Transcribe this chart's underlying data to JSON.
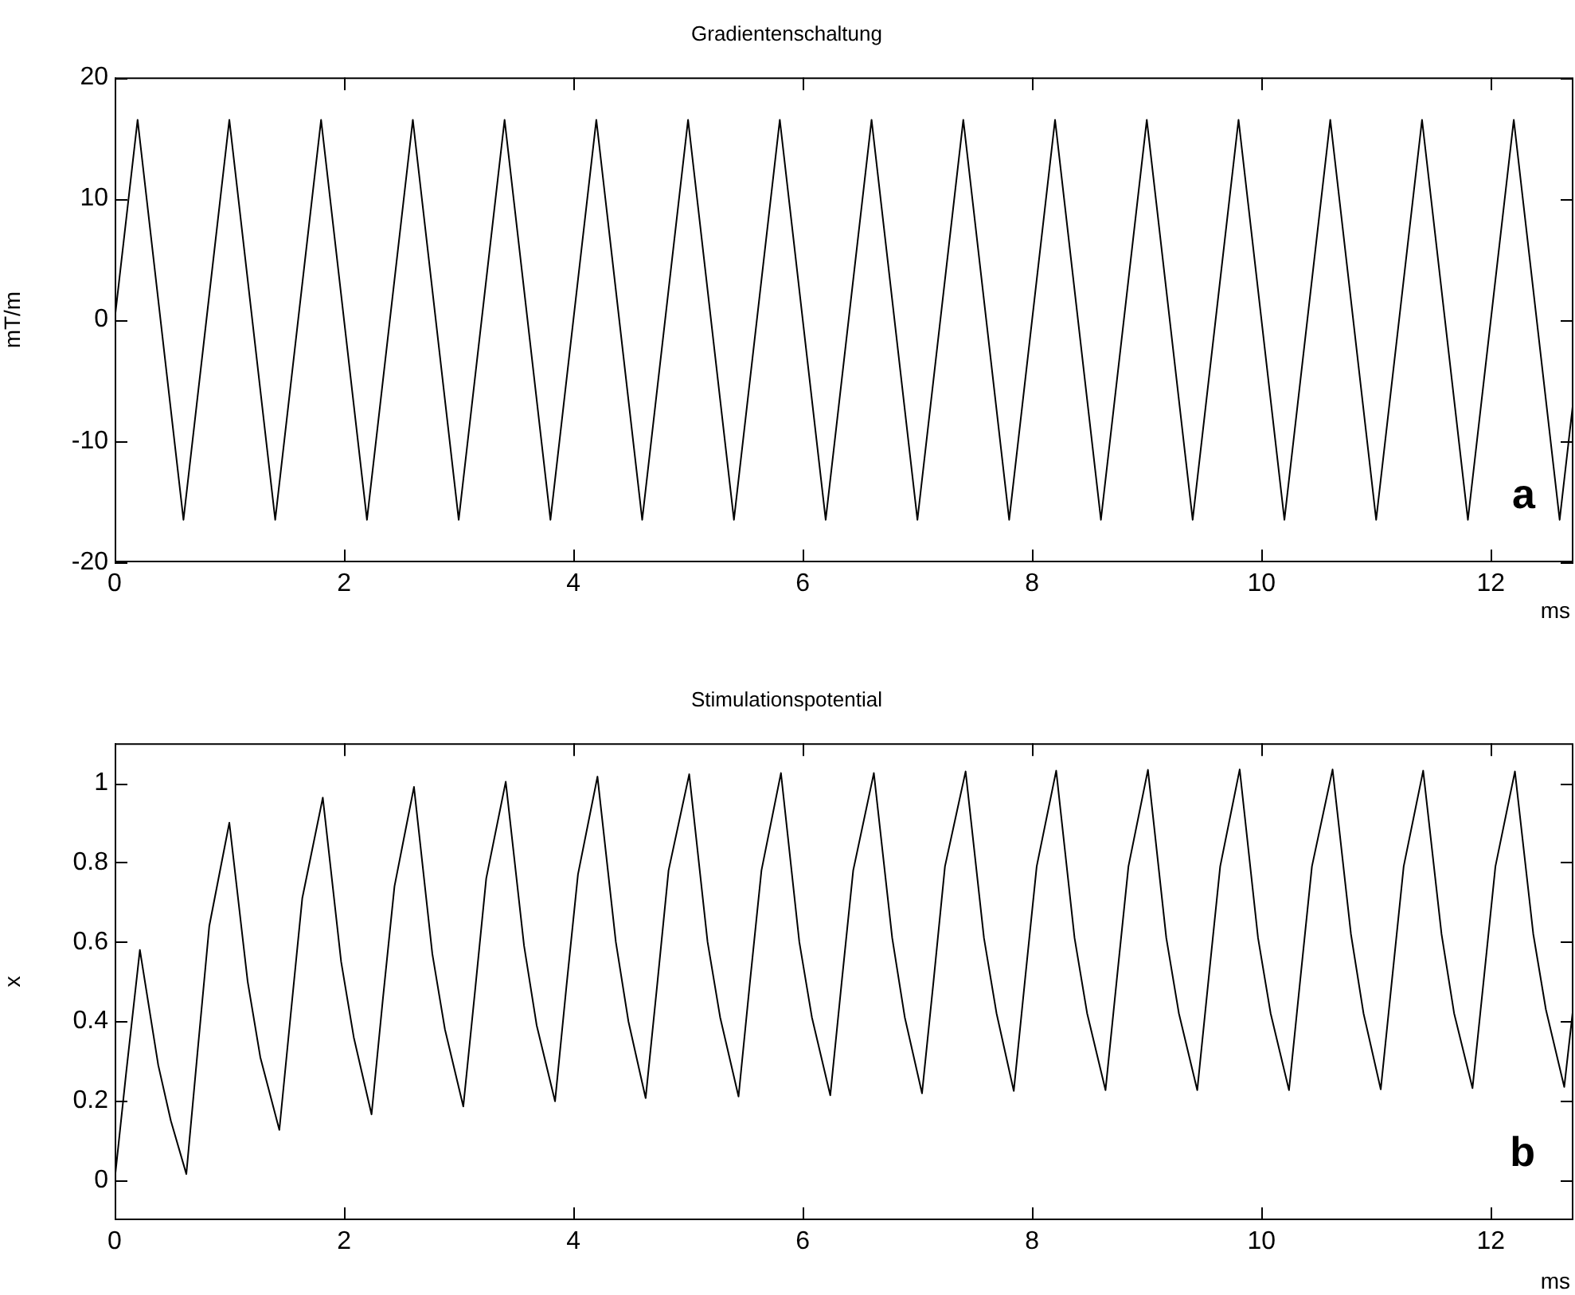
{
  "chart_data": [
    {
      "type": "line",
      "title": "Gradientenschaltung",
      "xlabel": "ms",
      "ylabel": "mT/m",
      "annotations": [
        "a"
      ],
      "xlim": [
        0,
        12.72
      ],
      "xticks": [
        0,
        2,
        4,
        6,
        8,
        10,
        12
      ],
      "ylim": [
        -20,
        20
      ],
      "yticks": [
        -20,
        -10,
        0,
        10,
        20
      ],
      "grid": false,
      "legend": false,
      "marker": "none",
      "line_style": "solid",
      "series": [
        {
          "color": "#000000",
          "x": [
            0,
            0.2,
            0.6,
            1.0,
            1.4,
            1.8,
            2.2,
            2.6,
            3.0,
            3.4,
            3.8,
            4.2,
            4.6,
            5.0,
            5.4,
            5.8,
            6.2,
            6.6,
            7.0,
            7.4,
            7.8,
            8.2,
            8.6,
            9.0,
            9.4,
            9.8,
            10.2,
            10.6,
            11.0,
            11.4,
            11.8,
            12.2,
            12.6,
            12.72
          ],
          "values": [
            0,
            16.5,
            -16.5,
            16.5,
            -16.5,
            16.5,
            -16.5,
            16.5,
            -16.5,
            16.5,
            -16.5,
            16.5,
            -16.5,
            16.5,
            -16.5,
            16.5,
            -16.5,
            16.5,
            -16.5,
            16.5,
            -16.5,
            16.5,
            -16.5,
            16.5,
            -16.5,
            16.5,
            -16.5,
            16.5,
            -16.5,
            16.5,
            -16.5,
            16.5,
            -16.5,
            -6.6
          ]
        }
      ]
    },
    {
      "type": "line",
      "title": "Stimulationspotential",
      "xlabel": "ms",
      "ylabel": "x",
      "annotations": [
        "b"
      ],
      "xlim": [
        0,
        12.72
      ],
      "xticks": [
        0,
        2,
        4,
        6,
        8,
        10,
        12
      ],
      "ylim": [
        -0.1,
        1.1
      ],
      "yticks": [
        0,
        0.2,
        0.4,
        0.6,
        0.8,
        1
      ],
      "grid": false,
      "legend": false,
      "marker": "none",
      "line_style": "solid",
      "series": [
        {
          "color": "#000000",
          "x": [
            0,
            0.1,
            0.22,
            0.38,
            0.49,
            0.625,
            0.725,
            0.825,
            1.0,
            1.16,
            1.27,
            1.436,
            1.536,
            1.636,
            1.815,
            1.975,
            2.085,
            2.24,
            2.34,
            2.44,
            2.61,
            2.77,
            2.88,
            3.04,
            3.14,
            3.24,
            3.41,
            3.57,
            3.68,
            3.84,
            3.94,
            4.04,
            4.21,
            4.37,
            4.48,
            4.63,
            4.73,
            4.83,
            5.01,
            5.17,
            5.28,
            5.44,
            5.54,
            5.64,
            5.81,
            5.97,
            6.08,
            6.24,
            6.34,
            6.44,
            6.62,
            6.78,
            6.89,
            7.04,
            7.14,
            7.24,
            7.42,
            7.58,
            7.69,
            7.84,
            7.94,
            8.04,
            8.21,
            8.37,
            8.48,
            8.64,
            8.74,
            8.84,
            9.01,
            9.17,
            9.28,
            9.44,
            9.54,
            9.64,
            9.81,
            9.97,
            10.08,
            10.24,
            10.34,
            10.44,
            10.62,
            10.78,
            10.89,
            11.04,
            11.14,
            11.24,
            11.41,
            11.57,
            11.68,
            11.84,
            11.94,
            12.04,
            12.21,
            12.37,
            12.48,
            12.64,
            12.72
          ],
          "values": [
            0,
            0.27,
            0.58,
            0.29,
            0.15,
            0.016,
            0.33,
            0.64,
            0.9,
            0.5,
            0.31,
            0.127,
            0.42,
            0.71,
            0.963,
            0.55,
            0.36,
            0.166,
            0.46,
            0.74,
            0.99,
            0.57,
            0.38,
            0.186,
            0.47,
            0.76,
            1.003,
            0.59,
            0.39,
            0.199,
            0.49,
            0.77,
            1.016,
            0.6,
            0.4,
            0.207,
            0.49,
            0.78,
            1.022,
            0.6,
            0.41,
            0.211,
            0.5,
            0.78,
            1.025,
            0.6,
            0.41,
            0.214,
            0.5,
            0.78,
            1.025,
            0.61,
            0.41,
            0.219,
            0.5,
            0.79,
            1.029,
            0.61,
            0.42,
            0.225,
            0.51,
            0.79,
            1.031,
            0.61,
            0.42,
            0.227,
            0.51,
            0.79,
            1.033,
            0.61,
            0.42,
            0.227,
            0.51,
            0.79,
            1.034,
            0.61,
            0.42,
            0.227,
            0.51,
            0.79,
            1.034,
            0.62,
            0.42,
            0.229,
            0.51,
            0.79,
            1.031,
            0.62,
            0.42,
            0.232,
            0.51,
            0.79,
            1.029,
            0.62,
            0.43,
            0.235,
            0.44
          ]
        }
      ]
    }
  ]
}
